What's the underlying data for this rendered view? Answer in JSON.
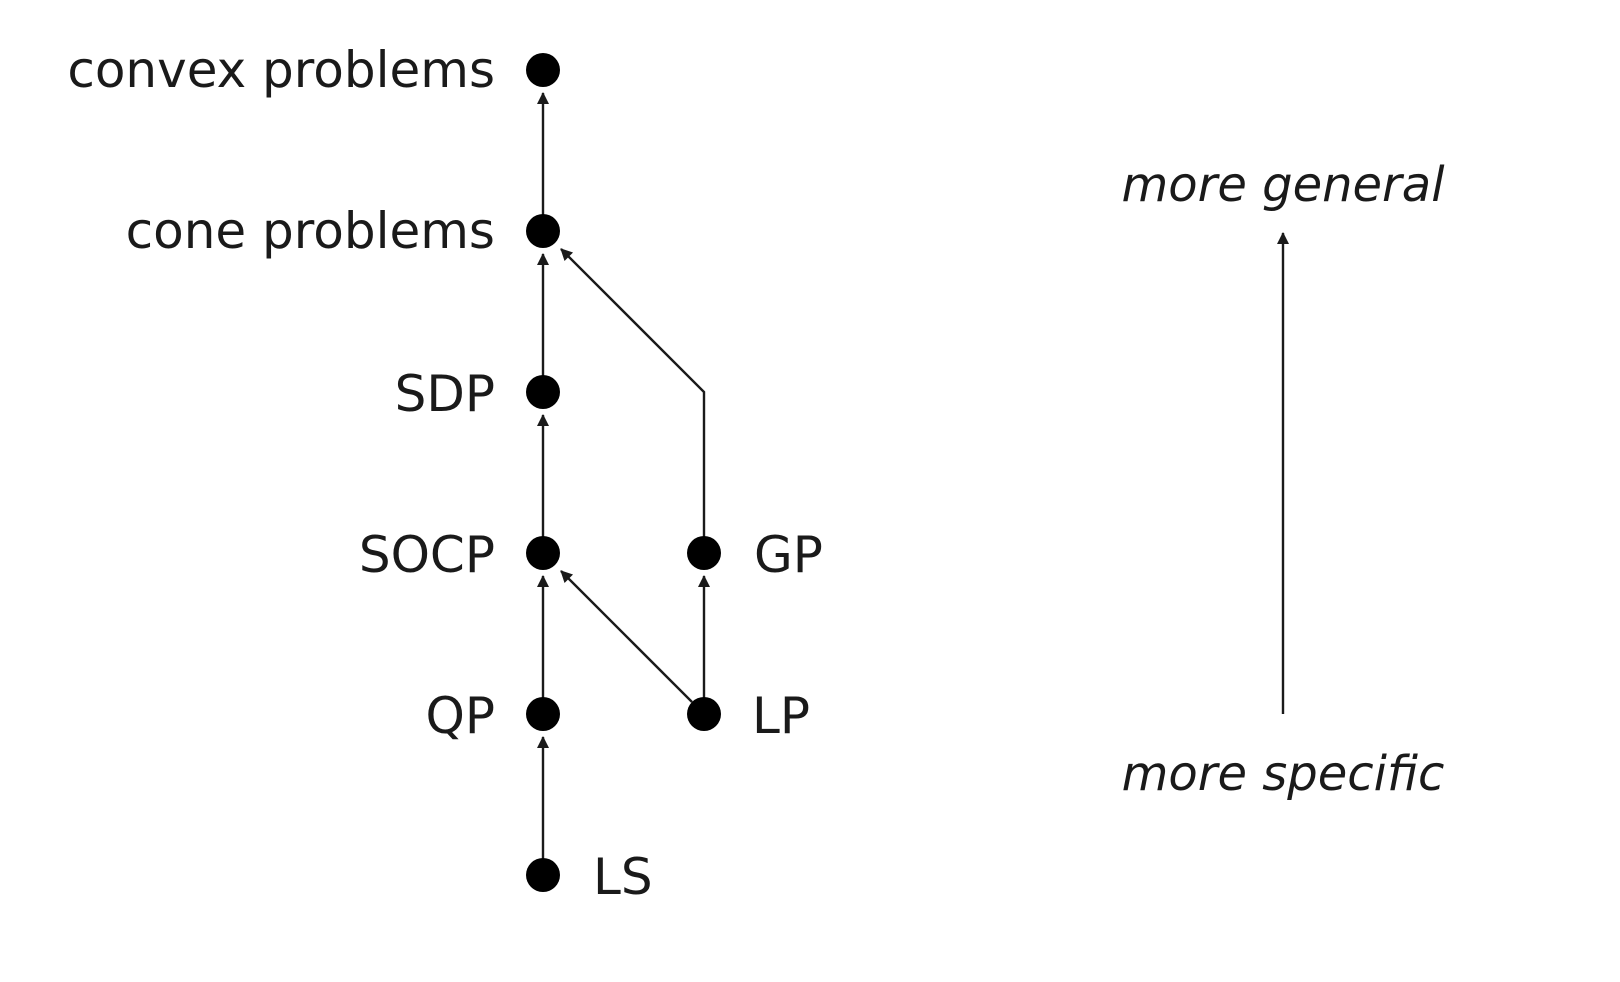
{
  "diagram": {
    "nodes": {
      "convex": "convex problems",
      "cone": "cone problems",
      "sdp": "SDP",
      "socp": "SOCP",
      "gp": "GP",
      "qp": "QP",
      "lp": "LP",
      "ls": "LS"
    },
    "edges": [
      {
        "from": "LS",
        "to": "QP"
      },
      {
        "from": "QP",
        "to": "SOCP"
      },
      {
        "from": "LP",
        "to": "SOCP"
      },
      {
        "from": "LP",
        "to": "GP"
      },
      {
        "from": "SOCP",
        "to": "SDP"
      },
      {
        "from": "SDP",
        "to": "cone problems"
      },
      {
        "from": "GP",
        "to": "cone problems"
      },
      {
        "from": "cone problems",
        "to": "convex problems"
      }
    ],
    "direction_axis": {
      "top_label": "more general",
      "bottom_label": "more specific"
    }
  }
}
